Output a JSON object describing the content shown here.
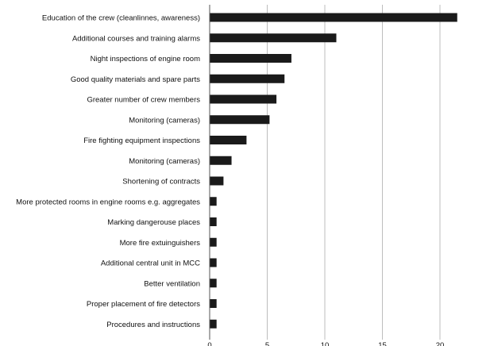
{
  "chart_data": {
    "type": "bar",
    "orientation": "horizontal",
    "categories": [
      "Education of the crew (cleanlinnes, awareness)",
      "Additional courses and training alarms",
      "Night inspections of engine room",
      "Good quality materials and spare parts",
      "Greater number of crew members",
      "Monitoring (cameras)",
      "Fire fighting equipment  inspections",
      "Monitoring (cameras)",
      "Shortening of contracts",
      "More protected rooms in engine rooms e.g. aggregates",
      "Marking dangerouse places",
      "More fire extuinguishers",
      "Additional central unit in MCC",
      "Better ventilation",
      "Proper placement of fire detectors",
      "Procedures and instructions"
    ],
    "values": [
      21.5,
      11.0,
      7.1,
      6.5,
      5.8,
      5.2,
      3.2,
      1.9,
      1.2,
      0.6,
      0.6,
      0.6,
      0.6,
      0.6,
      0.6,
      0.6
    ],
    "xticks": [
      0,
      5,
      10,
      15,
      20
    ],
    "xlim": [
      0,
      24
    ],
    "title": "",
    "xlabel": "",
    "ylabel": "",
    "grid": "vertical",
    "legend": "none",
    "bar_color": "#1a1a1a",
    "grid_color": "#bdbdbd",
    "axis_color": "#555555"
  }
}
